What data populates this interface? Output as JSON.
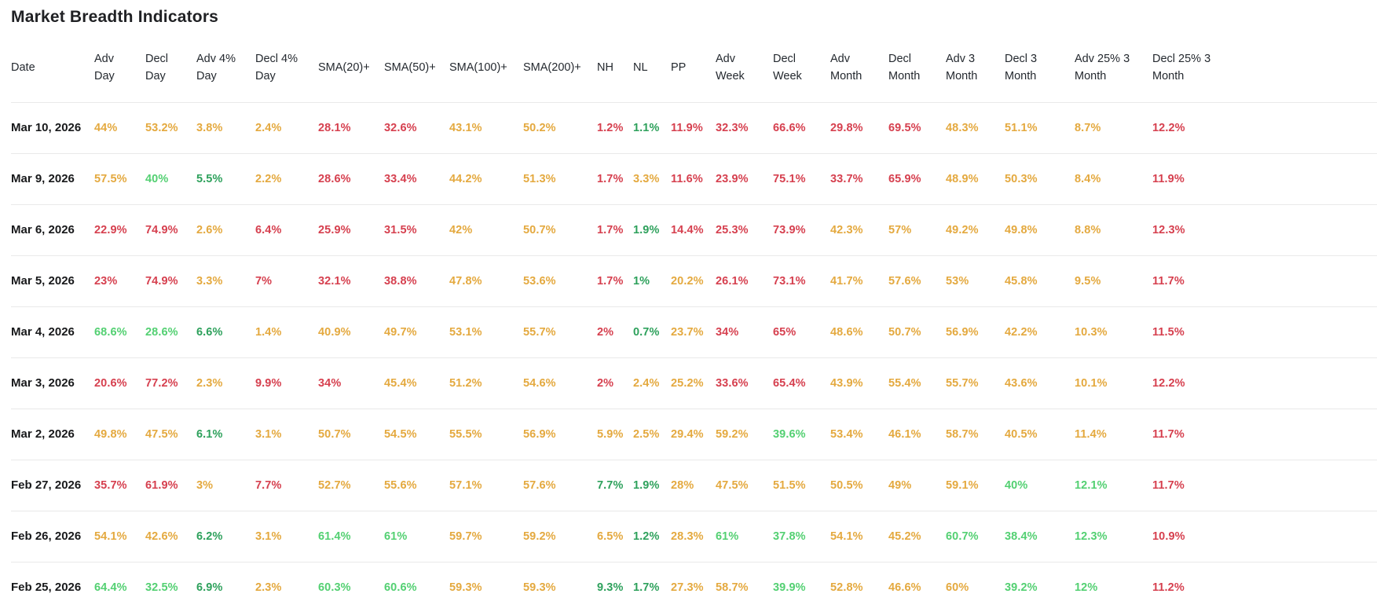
{
  "title": "Market Breadth Indicators",
  "colors": {
    "red": "#d6404f",
    "amber": "#e4a93f",
    "green": "#53d072",
    "dark_green": "#2ea15c"
  },
  "table": {
    "columns": [
      "Date",
      "Adv Day",
      "Decl Day",
      "Adv 4% Day",
      "Decl 4% Day",
      "SMA(20)+",
      "SMA(50)+",
      "SMA(100)+",
      "SMA(200)+",
      "NH",
      "NL",
      "PP",
      "Adv Week",
      "Decl Week",
      "Adv Month",
      "Decl Month",
      "Adv 3 Month",
      "Decl 3 Month",
      "Adv 25% 3 Month",
      "Decl 25% 3 Month"
    ],
    "rows": [
      {
        "date": "Mar 10, 2026",
        "cells": [
          {
            "v": "44%",
            "c": "amber"
          },
          {
            "v": "53.2%",
            "c": "amber"
          },
          {
            "v": "3.8%",
            "c": "amber"
          },
          {
            "v": "2.4%",
            "c": "amber"
          },
          {
            "v": "28.1%",
            "c": "red"
          },
          {
            "v": "32.6%",
            "c": "red"
          },
          {
            "v": "43.1%",
            "c": "amber"
          },
          {
            "v": "50.2%",
            "c": "amber"
          },
          {
            "v": "1.2%",
            "c": "red"
          },
          {
            "v": "1.1%",
            "c": "dark_green"
          },
          {
            "v": "11.9%",
            "c": "red"
          },
          {
            "v": "32.3%",
            "c": "red"
          },
          {
            "v": "66.6%",
            "c": "red"
          },
          {
            "v": "29.8%",
            "c": "red"
          },
          {
            "v": "69.5%",
            "c": "red"
          },
          {
            "v": "48.3%",
            "c": "amber"
          },
          {
            "v": "51.1%",
            "c": "amber"
          },
          {
            "v": "8.7%",
            "c": "amber"
          },
          {
            "v": "12.2%",
            "c": "red"
          }
        ]
      },
      {
        "date": "Mar 9, 2026",
        "cells": [
          {
            "v": "57.5%",
            "c": "amber"
          },
          {
            "v": "40%",
            "c": "green"
          },
          {
            "v": "5.5%",
            "c": "dark_green"
          },
          {
            "v": "2.2%",
            "c": "amber"
          },
          {
            "v": "28.6%",
            "c": "red"
          },
          {
            "v": "33.4%",
            "c": "red"
          },
          {
            "v": "44.2%",
            "c": "amber"
          },
          {
            "v": "51.3%",
            "c": "amber"
          },
          {
            "v": "1.7%",
            "c": "red"
          },
          {
            "v": "3.3%",
            "c": "amber"
          },
          {
            "v": "11.6%",
            "c": "red"
          },
          {
            "v": "23.9%",
            "c": "red"
          },
          {
            "v": "75.1%",
            "c": "red"
          },
          {
            "v": "33.7%",
            "c": "red"
          },
          {
            "v": "65.9%",
            "c": "red"
          },
          {
            "v": "48.9%",
            "c": "amber"
          },
          {
            "v": "50.3%",
            "c": "amber"
          },
          {
            "v": "8.4%",
            "c": "amber"
          },
          {
            "v": "11.9%",
            "c": "red"
          }
        ]
      },
      {
        "date": "Mar 6, 2026",
        "cells": [
          {
            "v": "22.9%",
            "c": "red"
          },
          {
            "v": "74.9%",
            "c": "red"
          },
          {
            "v": "2.6%",
            "c": "amber"
          },
          {
            "v": "6.4%",
            "c": "red"
          },
          {
            "v": "25.9%",
            "c": "red"
          },
          {
            "v": "31.5%",
            "c": "red"
          },
          {
            "v": "42%",
            "c": "amber"
          },
          {
            "v": "50.7%",
            "c": "amber"
          },
          {
            "v": "1.7%",
            "c": "red"
          },
          {
            "v": "1.9%",
            "c": "dark_green"
          },
          {
            "v": "14.4%",
            "c": "red"
          },
          {
            "v": "25.3%",
            "c": "red"
          },
          {
            "v": "73.9%",
            "c": "red"
          },
          {
            "v": "42.3%",
            "c": "amber"
          },
          {
            "v": "57%",
            "c": "amber"
          },
          {
            "v": "49.2%",
            "c": "amber"
          },
          {
            "v": "49.8%",
            "c": "amber"
          },
          {
            "v": "8.8%",
            "c": "amber"
          },
          {
            "v": "12.3%",
            "c": "red"
          }
        ]
      },
      {
        "date": "Mar 5, 2026",
        "cells": [
          {
            "v": "23%",
            "c": "red"
          },
          {
            "v": "74.9%",
            "c": "red"
          },
          {
            "v": "3.3%",
            "c": "amber"
          },
          {
            "v": "7%",
            "c": "red"
          },
          {
            "v": "32.1%",
            "c": "red"
          },
          {
            "v": "38.8%",
            "c": "red"
          },
          {
            "v": "47.8%",
            "c": "amber"
          },
          {
            "v": "53.6%",
            "c": "amber"
          },
          {
            "v": "1.7%",
            "c": "red"
          },
          {
            "v": "1%",
            "c": "dark_green"
          },
          {
            "v": "20.2%",
            "c": "amber"
          },
          {
            "v": "26.1%",
            "c": "red"
          },
          {
            "v": "73.1%",
            "c": "red"
          },
          {
            "v": "41.7%",
            "c": "amber"
          },
          {
            "v": "57.6%",
            "c": "amber"
          },
          {
            "v": "53%",
            "c": "amber"
          },
          {
            "v": "45.8%",
            "c": "amber"
          },
          {
            "v": "9.5%",
            "c": "amber"
          },
          {
            "v": "11.7%",
            "c": "red"
          }
        ]
      },
      {
        "date": "Mar 4, 2026",
        "cells": [
          {
            "v": "68.6%",
            "c": "green"
          },
          {
            "v": "28.6%",
            "c": "green"
          },
          {
            "v": "6.6%",
            "c": "dark_green"
          },
          {
            "v": "1.4%",
            "c": "amber"
          },
          {
            "v": "40.9%",
            "c": "amber"
          },
          {
            "v": "49.7%",
            "c": "amber"
          },
          {
            "v": "53.1%",
            "c": "amber"
          },
          {
            "v": "55.7%",
            "c": "amber"
          },
          {
            "v": "2%",
            "c": "red"
          },
          {
            "v": "0.7%",
            "c": "dark_green"
          },
          {
            "v": "23.7%",
            "c": "amber"
          },
          {
            "v": "34%",
            "c": "red"
          },
          {
            "v": "65%",
            "c": "red"
          },
          {
            "v": "48.6%",
            "c": "amber"
          },
          {
            "v": "50.7%",
            "c": "amber"
          },
          {
            "v": "56.9%",
            "c": "amber"
          },
          {
            "v": "42.2%",
            "c": "amber"
          },
          {
            "v": "10.3%",
            "c": "amber"
          },
          {
            "v": "11.5%",
            "c": "red"
          }
        ]
      },
      {
        "date": "Mar 3, 2026",
        "cells": [
          {
            "v": "20.6%",
            "c": "red"
          },
          {
            "v": "77.2%",
            "c": "red"
          },
          {
            "v": "2.3%",
            "c": "amber"
          },
          {
            "v": "9.9%",
            "c": "red"
          },
          {
            "v": "34%",
            "c": "red"
          },
          {
            "v": "45.4%",
            "c": "amber"
          },
          {
            "v": "51.2%",
            "c": "amber"
          },
          {
            "v": "54.6%",
            "c": "amber"
          },
          {
            "v": "2%",
            "c": "red"
          },
          {
            "v": "2.4%",
            "c": "amber"
          },
          {
            "v": "25.2%",
            "c": "amber"
          },
          {
            "v": "33.6%",
            "c": "red"
          },
          {
            "v": "65.4%",
            "c": "red"
          },
          {
            "v": "43.9%",
            "c": "amber"
          },
          {
            "v": "55.4%",
            "c": "amber"
          },
          {
            "v": "55.7%",
            "c": "amber"
          },
          {
            "v": "43.6%",
            "c": "amber"
          },
          {
            "v": "10.1%",
            "c": "amber"
          },
          {
            "v": "12.2%",
            "c": "red"
          }
        ]
      },
      {
        "date": "Mar 2, 2026",
        "cells": [
          {
            "v": "49.8%",
            "c": "amber"
          },
          {
            "v": "47.5%",
            "c": "amber"
          },
          {
            "v": "6.1%",
            "c": "dark_green"
          },
          {
            "v": "3.1%",
            "c": "amber"
          },
          {
            "v": "50.7%",
            "c": "amber"
          },
          {
            "v": "54.5%",
            "c": "amber"
          },
          {
            "v": "55.5%",
            "c": "amber"
          },
          {
            "v": "56.9%",
            "c": "amber"
          },
          {
            "v": "5.9%",
            "c": "amber"
          },
          {
            "v": "2.5%",
            "c": "amber"
          },
          {
            "v": "29.4%",
            "c": "amber"
          },
          {
            "v": "59.2%",
            "c": "amber"
          },
          {
            "v": "39.6%",
            "c": "green"
          },
          {
            "v": "53.4%",
            "c": "amber"
          },
          {
            "v": "46.1%",
            "c": "amber"
          },
          {
            "v": "58.7%",
            "c": "amber"
          },
          {
            "v": "40.5%",
            "c": "amber"
          },
          {
            "v": "11.4%",
            "c": "amber"
          },
          {
            "v": "11.7%",
            "c": "red"
          }
        ]
      },
      {
        "date": "Feb 27, 2026",
        "cells": [
          {
            "v": "35.7%",
            "c": "red"
          },
          {
            "v": "61.9%",
            "c": "red"
          },
          {
            "v": "3%",
            "c": "amber"
          },
          {
            "v": "7.7%",
            "c": "red"
          },
          {
            "v": "52.7%",
            "c": "amber"
          },
          {
            "v": "55.6%",
            "c": "amber"
          },
          {
            "v": "57.1%",
            "c": "amber"
          },
          {
            "v": "57.6%",
            "c": "amber"
          },
          {
            "v": "7.7%",
            "c": "dark_green"
          },
          {
            "v": "1.9%",
            "c": "dark_green"
          },
          {
            "v": "28%",
            "c": "amber"
          },
          {
            "v": "47.5%",
            "c": "amber"
          },
          {
            "v": "51.5%",
            "c": "amber"
          },
          {
            "v": "50.5%",
            "c": "amber"
          },
          {
            "v": "49%",
            "c": "amber"
          },
          {
            "v": "59.1%",
            "c": "amber"
          },
          {
            "v": "40%",
            "c": "green"
          },
          {
            "v": "12.1%",
            "c": "green"
          },
          {
            "v": "11.7%",
            "c": "red"
          }
        ]
      },
      {
        "date": "Feb 26, 2026",
        "cells": [
          {
            "v": "54.1%",
            "c": "amber"
          },
          {
            "v": "42.6%",
            "c": "amber"
          },
          {
            "v": "6.2%",
            "c": "dark_green"
          },
          {
            "v": "3.1%",
            "c": "amber"
          },
          {
            "v": "61.4%",
            "c": "green"
          },
          {
            "v": "61%",
            "c": "green"
          },
          {
            "v": "59.7%",
            "c": "amber"
          },
          {
            "v": "59.2%",
            "c": "amber"
          },
          {
            "v": "6.5%",
            "c": "amber"
          },
          {
            "v": "1.2%",
            "c": "dark_green"
          },
          {
            "v": "28.3%",
            "c": "amber"
          },
          {
            "v": "61%",
            "c": "green"
          },
          {
            "v": "37.8%",
            "c": "green"
          },
          {
            "v": "54.1%",
            "c": "amber"
          },
          {
            "v": "45.2%",
            "c": "amber"
          },
          {
            "v": "60.7%",
            "c": "green"
          },
          {
            "v": "38.4%",
            "c": "green"
          },
          {
            "v": "12.3%",
            "c": "green"
          },
          {
            "v": "10.9%",
            "c": "red"
          }
        ]
      },
      {
        "date": "Feb 25, 2026",
        "cells": [
          {
            "v": "64.4%",
            "c": "green"
          },
          {
            "v": "32.5%",
            "c": "green"
          },
          {
            "v": "6.9%",
            "c": "dark_green"
          },
          {
            "v": "2.3%",
            "c": "amber"
          },
          {
            "v": "60.3%",
            "c": "green"
          },
          {
            "v": "60.6%",
            "c": "green"
          },
          {
            "v": "59.3%",
            "c": "amber"
          },
          {
            "v": "59.3%",
            "c": "amber"
          },
          {
            "v": "9.3%",
            "c": "dark_green"
          },
          {
            "v": "1.7%",
            "c": "dark_green"
          },
          {
            "v": "27.3%",
            "c": "amber"
          },
          {
            "v": "58.7%",
            "c": "amber"
          },
          {
            "v": "39.9%",
            "c": "green"
          },
          {
            "v": "52.8%",
            "c": "amber"
          },
          {
            "v": "46.6%",
            "c": "amber"
          },
          {
            "v": "60%",
            "c": "amber"
          },
          {
            "v": "39.2%",
            "c": "green"
          },
          {
            "v": "12%",
            "c": "green"
          },
          {
            "v": "11.2%",
            "c": "red"
          }
        ]
      }
    ]
  }
}
